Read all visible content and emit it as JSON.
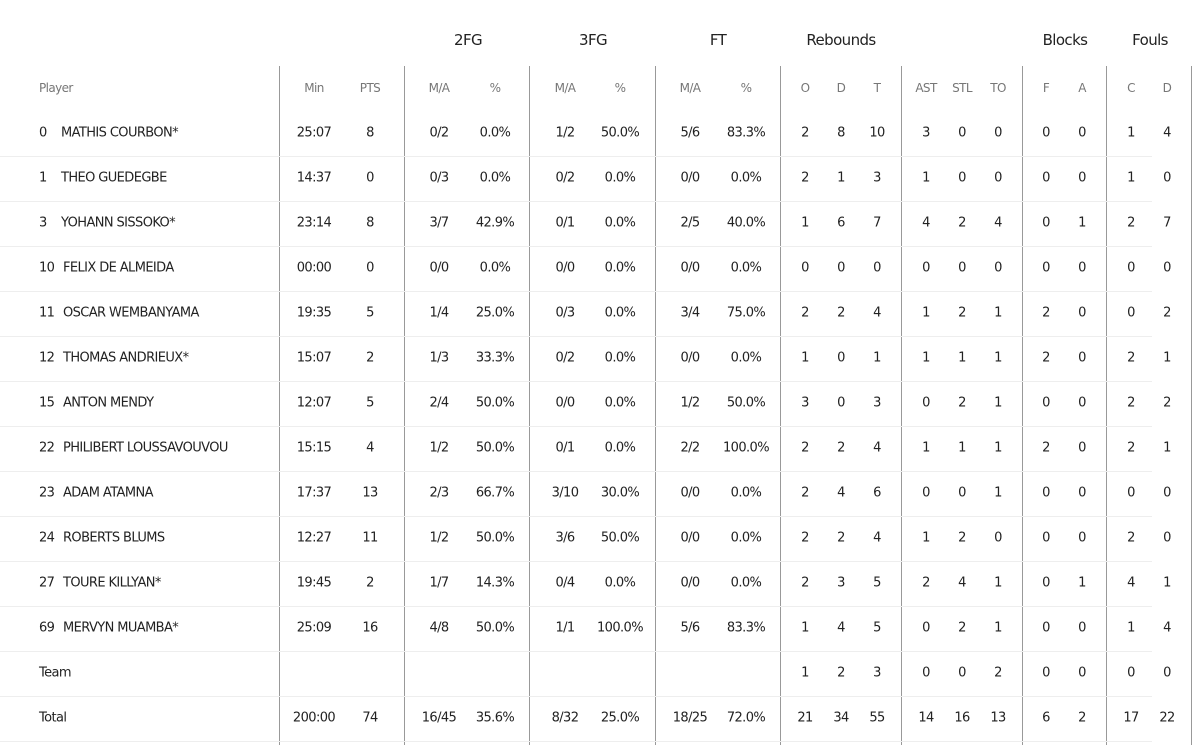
{
  "groups": [
    "2FG",
    "3FG",
    "FT",
    "Rebounds",
    "Blocks",
    "Fouls"
  ],
  "columns": [
    "Player",
    "Min",
    "PTS",
    "M/A",
    "%",
    "M/A",
    "%",
    "M/A",
    "%",
    "O",
    "D",
    "T",
    "AST",
    "STL",
    "TO",
    "F",
    "A",
    "C",
    "D"
  ],
  "rows": [
    {
      "number": 0,
      "name": "MATHIS COURBON*",
      "stats": [
        "25:07",
        8,
        "0/2",
        "0.0%",
        "1/2",
        "50.0%",
        "5/6",
        "83.3%",
        2,
        8,
        10,
        3,
        0,
        0,
        0,
        0,
        1,
        4
      ]
    },
    {
      "number": 1,
      "name": "THEO GUEDEGBE",
      "stats": [
        "14:37",
        0,
        "0/3",
        "0.0%",
        "0/2",
        "0.0%",
        "0/0",
        "0.0%",
        2,
        1,
        3,
        1,
        0,
        0,
        0,
        0,
        1,
        0
      ]
    },
    {
      "number": 3,
      "name": "YOHANN SISSOKO*",
      "stats": [
        "23:14",
        8,
        "3/7",
        "42.9%",
        "0/1",
        "0.0%",
        "2/5",
        "40.0%",
        1,
        6,
        7,
        4,
        2,
        4,
        0,
        1,
        2,
        7
      ]
    },
    {
      "number": 10,
      "name": "FELIX DE ALMEIDA",
      "stats": [
        "00:00",
        0,
        "0/0",
        "0.0%",
        "0/0",
        "0.0%",
        "0/0",
        "0.0%",
        0,
        0,
        0,
        0,
        0,
        0,
        0,
        0,
        0,
        0
      ]
    },
    {
      "number": 11,
      "name": "OSCAR WEMBANYAMA",
      "stats": [
        "19:35",
        5,
        "1/4",
        "25.0%",
        "0/3",
        "0.0%",
        "3/4",
        "75.0%",
        2,
        2,
        4,
        1,
        2,
        1,
        2,
        0,
        0,
        2
      ]
    },
    {
      "number": 12,
      "name": "THOMAS ANDRIEUX*",
      "stats": [
        "15:07",
        2,
        "1/3",
        "33.3%",
        "0/2",
        "0.0%",
        "0/0",
        "0.0%",
        1,
        0,
        1,
        1,
        1,
        1,
        2,
        0,
        2,
        1
      ]
    },
    {
      "number": 15,
      "name": "ANTON MENDY",
      "stats": [
        "12:07",
        5,
        "2/4",
        "50.0%",
        "0/0",
        "0.0%",
        "1/2",
        "50.0%",
        3,
        0,
        3,
        0,
        2,
        1,
        0,
        0,
        2,
        2
      ]
    },
    {
      "number": 22,
      "name": "PHILIBERT LOUSSAVOUVOU",
      "stats": [
        "15:15",
        4,
        "1/2",
        "50.0%",
        "0/1",
        "0.0%",
        "2/2",
        "100.0%",
        2,
        2,
        4,
        1,
        1,
        1,
        2,
        0,
        2,
        1
      ]
    },
    {
      "number": 23,
      "name": "ADAM ATAMNA",
      "stats": [
        "17:37",
        13,
        "2/3",
        "66.7%",
        "3/10",
        "30.0%",
        "0/0",
        "0.0%",
        2,
        4,
        6,
        0,
        0,
        1,
        0,
        0,
        0,
        0
      ]
    },
    {
      "number": 24,
      "name": "ROBERTS BLUMS",
      "stats": [
        "12:27",
        11,
        "1/2",
        "50.0%",
        "3/6",
        "50.0%",
        "0/0",
        "0.0%",
        2,
        2,
        4,
        1,
        2,
        0,
        0,
        0,
        2,
        0
      ]
    },
    {
      "number": 27,
      "name": "TOURE KILLYAN*",
      "stats": [
        "19:45",
        2,
        "1/7",
        "14.3%",
        "0/4",
        "0.0%",
        "0/0",
        "0.0%",
        2,
        3,
        5,
        2,
        4,
        1,
        0,
        1,
        4,
        1
      ]
    },
    {
      "number": 69,
      "name": "MERVYN MUAMBA*",
      "stats": [
        "25:09",
        16,
        "4/8",
        "50.0%",
        "1/1",
        "100.0%",
        "5/6",
        "83.3%",
        1,
        4,
        5,
        0,
        2,
        1,
        0,
        0,
        1,
        4
      ]
    },
    {
      "name": "Team",
      "stats": [
        null,
        null,
        null,
        null,
        null,
        null,
        null,
        null,
        1,
        2,
        3,
        0,
        0,
        2,
        0,
        0,
        0,
        0
      ]
    },
    {
      "name": "Total",
      "stats": [
        "200:00",
        74,
        "16/45",
        "35.6%",
        "8/32",
        "25.0%",
        "18/25",
        "72.0%",
        21,
        34,
        55,
        14,
        16,
        13,
        6,
        2,
        17,
        22
      ]
    }
  ]
}
